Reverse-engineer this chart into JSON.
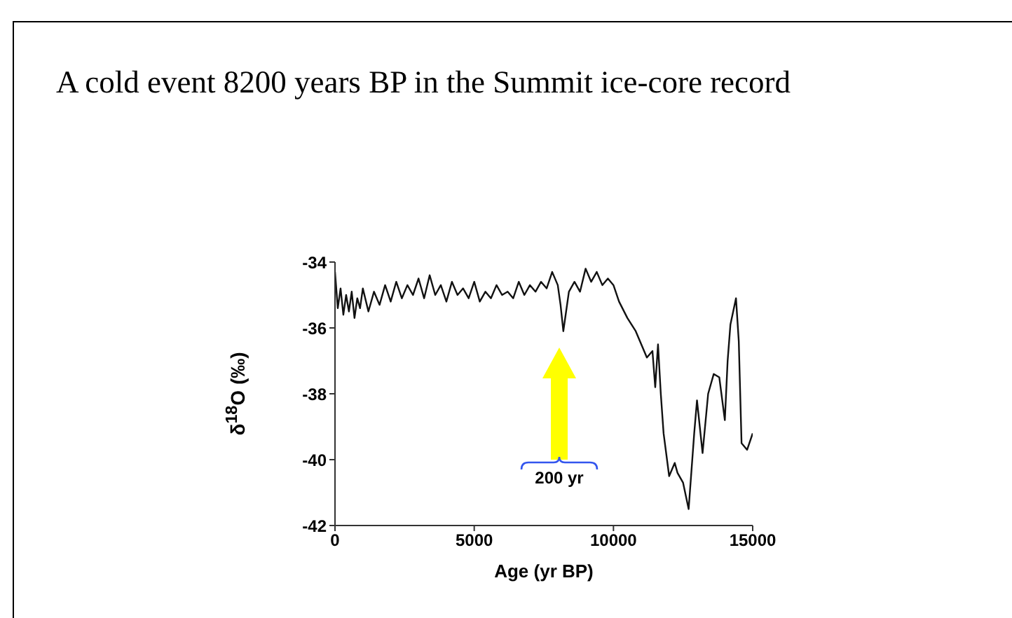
{
  "chart_data": {
    "type": "line",
    "title": "A cold event 8200 years BP in the Summit ice-core record",
    "xlabel": "Age (yr BP)",
    "ylabel": "δ$^{18}$O (‰)",
    "x": [
      0,
      100,
      200,
      300,
      400,
      500,
      600,
      700,
      800,
      900,
      1000,
      1200,
      1400,
      1600,
      1800,
      2000,
      2200,
      2400,
      2600,
      2800,
      3000,
      3200,
      3400,
      3600,
      3800,
      4000,
      4200,
      4400,
      4600,
      4800,
      5000,
      5200,
      5400,
      5600,
      5800,
      6000,
      6200,
      6400,
      6600,
      6800,
      7000,
      7200,
      7400,
      7600,
      7800,
      8000,
      8100,
      8200,
      8300,
      8400,
      8600,
      8800,
      9000,
      9200,
      9400,
      9600,
      9800,
      10000,
      10200,
      10500,
      10800,
      11000,
      11200,
      11400,
      11500,
      11600,
      11700,
      11800,
      12000,
      12200,
      12300,
      12500,
      12700,
      12900,
      13000,
      13200,
      13400,
      13600,
      13800,
      14000,
      14100,
      14200,
      14400,
      14500,
      14600,
      14800,
      15000
    ],
    "series": [
      {
        "color": "#111111",
        "values": [
          -34.3,
          -35.4,
          -34.8,
          -35.6,
          -35.0,
          -35.5,
          -34.9,
          -35.7,
          -35.1,
          -35.4,
          -34.8,
          -35.5,
          -34.9,
          -35.3,
          -34.7,
          -35.2,
          -34.6,
          -35.1,
          -34.7,
          -35.0,
          -34.5,
          -35.1,
          -34.4,
          -35.0,
          -34.7,
          -35.2,
          -34.6,
          -35.0,
          -34.8,
          -35.1,
          -34.6,
          -35.2,
          -34.9,
          -35.1,
          -34.7,
          -35.0,
          -34.9,
          -35.1,
          -34.6,
          -35.0,
          -34.7,
          -34.9,
          -34.6,
          -34.8,
          -34.3,
          -34.7,
          -35.3,
          -36.1,
          -35.5,
          -34.9,
          -34.6,
          -34.9,
          -34.2,
          -34.6,
          -34.3,
          -34.7,
          -34.5,
          -34.7,
          -35.2,
          -35.7,
          -36.1,
          -36.5,
          -36.9,
          -36.7,
          -37.8,
          -36.5,
          -38.0,
          -39.2,
          -40.5,
          -40.1,
          -40.4,
          -40.7,
          -41.5,
          -39.2,
          -38.2,
          -39.8,
          -38.0,
          -37.4,
          -37.5,
          -38.8,
          -37.0,
          -35.9,
          -35.1,
          -36.4,
          -39.5,
          -39.7,
          -39.2
        ]
      }
    ],
    "xlim": [
      0,
      15000
    ],
    "xticks": [
      0,
      5000,
      10000,
      15000
    ],
    "ylim": [
      -42,
      -34
    ],
    "yticks": [
      -42,
      -40,
      -38,
      -36,
      -34
    ],
    "annotations": [
      "200 yr"
    ]
  }
}
